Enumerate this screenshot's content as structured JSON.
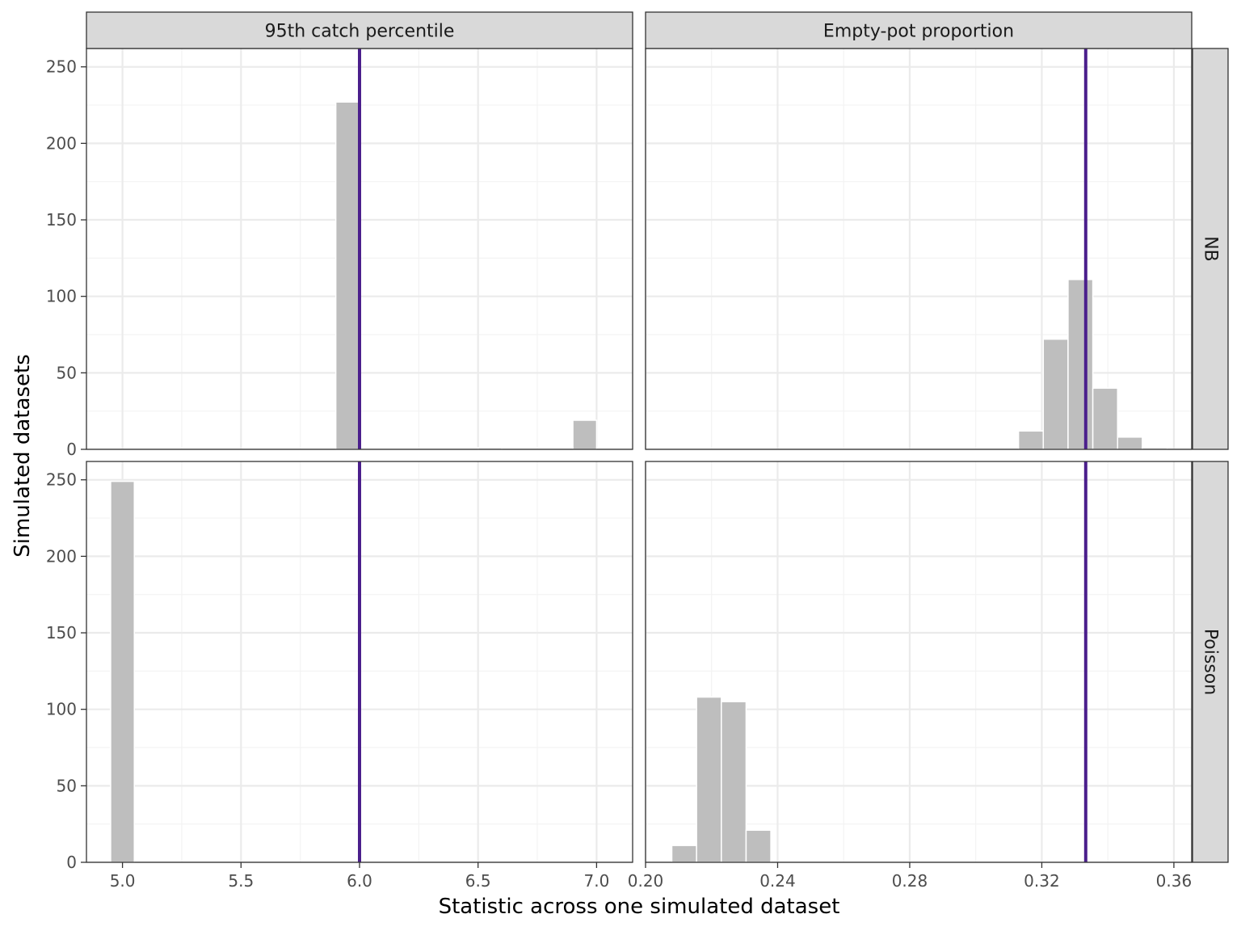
{
  "chart_data": {
    "type": "bar",
    "subtype": "faceted-histogram",
    "xlabel": "Statistic across one simulated dataset",
    "ylabel": "Simulated datasets",
    "grid": true,
    "legend": "none",
    "facet_columns": [
      "95th catch percentile",
      "Empty-pot proportion"
    ],
    "facet_rows": [
      "NB",
      "Poisson"
    ],
    "columns": [
      {
        "label": "95th catch percentile",
        "xlim": [
          4.848,
          7.152
        ],
        "xticks": [
          5.0,
          5.5,
          6.0,
          6.5,
          7.0
        ],
        "xtick_labels": [
          "5.0",
          "5.5",
          "6.0",
          "6.5",
          "7.0"
        ],
        "observed": 6.0,
        "bin_width": 0.1
      },
      {
        "label": "Empty-pot proportion",
        "xlim": [
          0.2,
          0.3654
        ],
        "xticks": [
          0.2,
          0.24,
          0.28,
          0.32,
          0.36
        ],
        "xtick_labels": [
          "0.20",
          "0.24",
          "0.28",
          "0.32",
          "0.36"
        ],
        "observed": 0.3333,
        "bin_width": 0.0075
      }
    ],
    "ylim": [
      0,
      262
    ],
    "yticks": [
      0,
      50,
      100,
      150,
      200,
      250
    ],
    "ytick_labels": [
      "0",
      "50",
      "100",
      "150",
      "200",
      "250"
    ],
    "panels": [
      {
        "column": 0,
        "row": 0,
        "bins": [
          {
            "x": 5.95,
            "count": 227
          },
          {
            "x": 6.55,
            "count": 1
          },
          {
            "x": 6.95,
            "count": 19
          }
        ]
      },
      {
        "column": 1,
        "row": 0,
        "bins": [
          {
            "x": 0.3167,
            "count": 12
          },
          {
            "x": 0.3242,
            "count": 72
          },
          {
            "x": 0.3317,
            "count": 111
          },
          {
            "x": 0.3392,
            "count": 40
          },
          {
            "x": 0.3467,
            "count": 8
          },
          {
            "x": 0.3542,
            "count": 1
          }
        ]
      },
      {
        "column": 0,
        "row": 1,
        "bins": [
          {
            "x": 5.0,
            "count": 249
          }
        ]
      },
      {
        "column": 1,
        "row": 1,
        "bins": [
          {
            "x": 0.2117,
            "count": 11
          },
          {
            "x": 0.2192,
            "count": 108
          },
          {
            "x": 0.2267,
            "count": 105
          },
          {
            "x": 0.2342,
            "count": 21
          }
        ]
      }
    ],
    "colors": {
      "bar_fill": "#bebebe",
      "bar_outline": "#ffffff",
      "observed_line": "#4b1f8c",
      "strip_fill": "#d9d9d9",
      "grid_major": "#ebebeb",
      "grid_minor": "#f3f3f3",
      "panel_border": "#333333"
    }
  }
}
